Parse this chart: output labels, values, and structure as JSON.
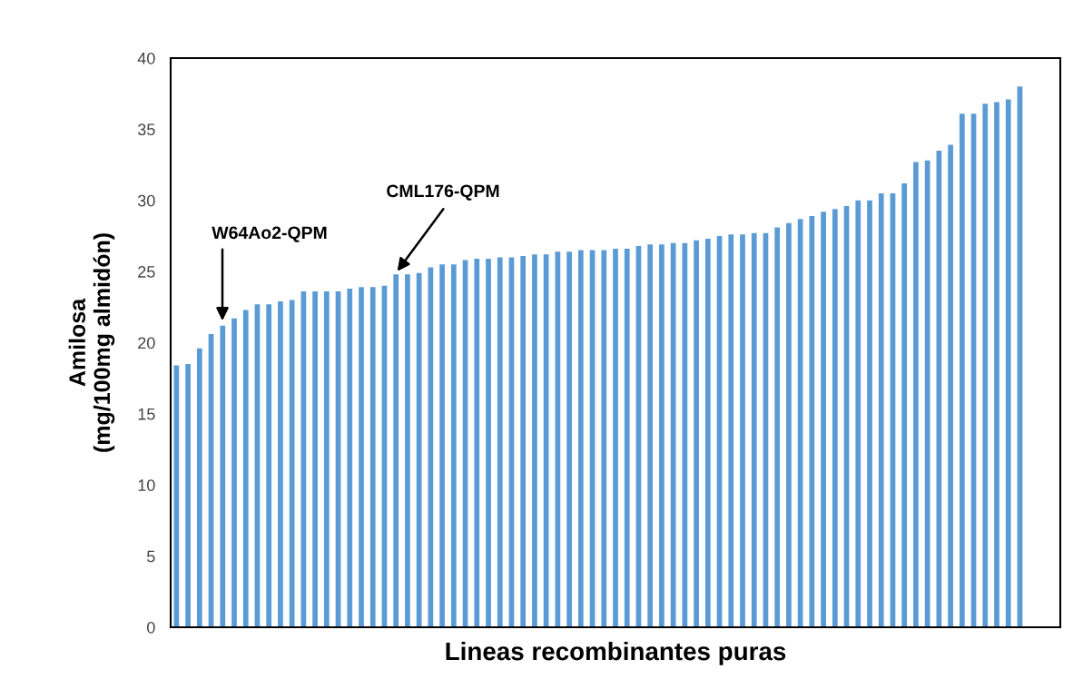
{
  "chart_data": {
    "type": "bar",
    "xlabel": "Lineas recombinantes puras",
    "ylabel": "Amilosa\n(mg/100mg almidón)",
    "categories": [
      null,
      null,
      null,
      null,
      null,
      null,
      null,
      null,
      null,
      null,
      null,
      null,
      null,
      null,
      null,
      null,
      null,
      null,
      null,
      null,
      null,
      null,
      null,
      null,
      null,
      null,
      null,
      null,
      null,
      null,
      null,
      null,
      null,
      null,
      null,
      null,
      null,
      null,
      null,
      null,
      null,
      null,
      null,
      null,
      null,
      null,
      null,
      null,
      null,
      null,
      null,
      null,
      null,
      null,
      null,
      null,
      null,
      null,
      null,
      null,
      null,
      null,
      null,
      null,
      null,
      null,
      null,
      null,
      null,
      null,
      null,
      null,
      null,
      null,
      null,
      null,
      null
    ],
    "values": [
      18.4,
      18.5,
      19.6,
      20.6,
      21.2,
      21.7,
      22.3,
      22.7,
      22.7,
      22.9,
      23.0,
      23.6,
      23.6,
      23.6,
      23.6,
      23.8,
      23.9,
      23.9,
      24.0,
      24.8,
      24.8,
      24.9,
      25.3,
      25.5,
      25.5,
      25.8,
      25.9,
      25.9,
      26.0,
      26.0,
      26.1,
      26.2,
      26.2,
      26.4,
      26.4,
      26.5,
      26.5,
      26.5,
      26.6,
      26.6,
      26.8,
      26.9,
      26.9,
      27.0,
      27.0,
      27.2,
      27.3,
      27.5,
      27.6,
      27.6,
      27.7,
      27.7,
      28.1,
      28.4,
      28.7,
      28.9,
      29.2,
      29.4,
      29.6,
      30.0,
      30.0,
      30.5,
      30.5,
      31.2,
      32.7,
      32.8,
      33.5,
      33.9,
      36.1,
      36.1,
      36.8,
      36.9,
      37.1,
      38.0,
      null,
      null,
      null
    ],
    "color": "#5b9bd5",
    "ylim": [
      0,
      40
    ],
    "yticks": [
      0,
      5,
      10,
      15,
      20,
      25,
      30,
      35,
      40
    ],
    "grid": false,
    "legend": false,
    "annotations": [
      "W64Ao2-QPM",
      "CML176-QPM"
    ]
  }
}
